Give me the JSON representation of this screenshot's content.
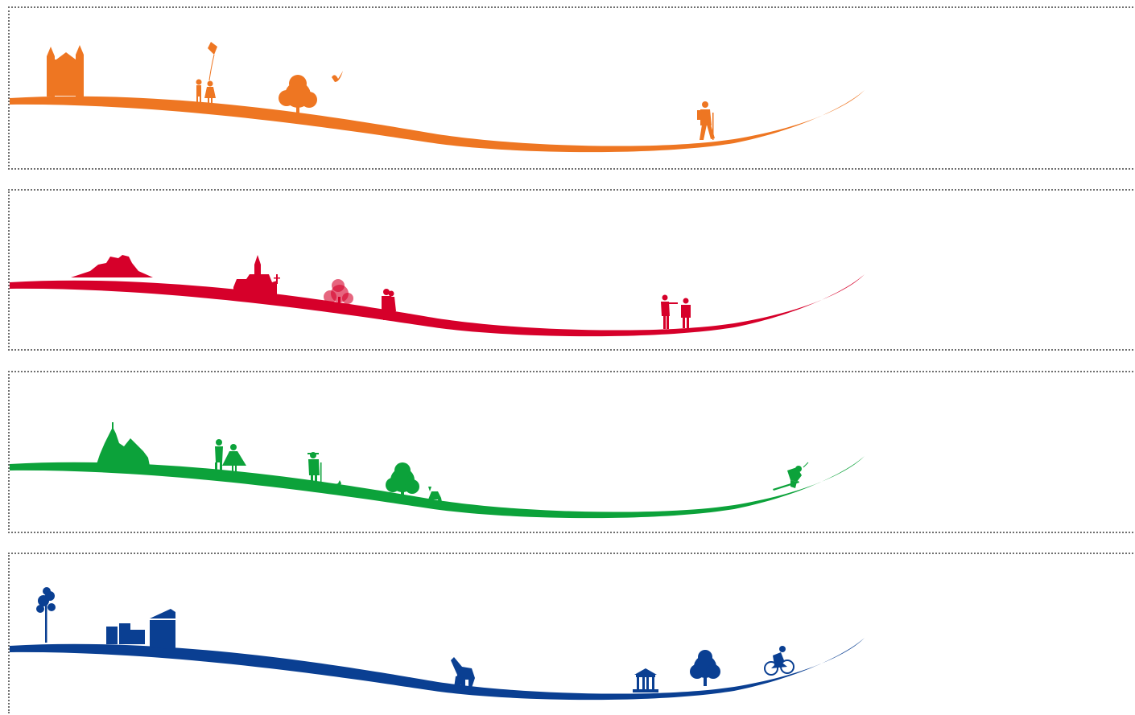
{
  "panels": [
    {
      "theme": "orange",
      "color": "#ee7622",
      "figures": [
        "castle-icon",
        "kite-children-icon",
        "tree-icon",
        "bird-icon",
        "hiker-icon"
      ]
    },
    {
      "theme": "red",
      "color": "#d6002a",
      "figures": [
        "hill-castle-icon",
        "church-icon",
        "blossom-tree-icon",
        "couple-icon",
        "violinists-icon"
      ]
    },
    {
      "theme": "green",
      "color": "#0ca23a",
      "figures": [
        "wooden-church-icon",
        "dancers-icon",
        "shepherd-dog-icon",
        "tree-icon",
        "deer-icon",
        "skier-icon"
      ]
    },
    {
      "theme": "blue",
      "color": "#0a3f92",
      "figures": [
        "birch-tree-icon",
        "city-buildings-icon",
        "giraffes-icon",
        "gazebo-icon",
        "tree-icon",
        "cyclist-icon"
      ]
    }
  ]
}
